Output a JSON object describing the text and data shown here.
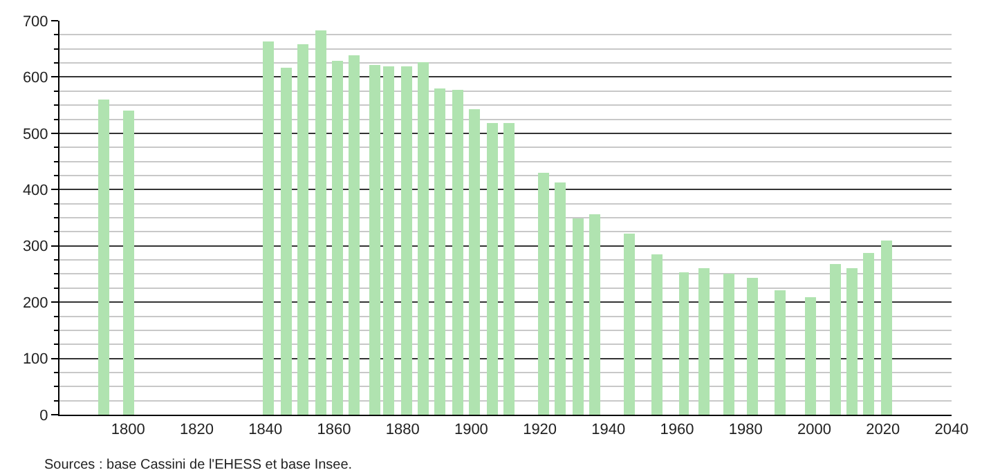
{
  "chart_data": {
    "type": "bar",
    "x": [
      1793,
      1800,
      1841,
      1846,
      1851,
      1856,
      1861,
      1866,
      1872,
      1876,
      1881,
      1886,
      1891,
      1896,
      1901,
      1906,
      1911,
      1921,
      1926,
      1931,
      1936,
      1946,
      1954,
      1962,
      1968,
      1975,
      1982,
      1990,
      1999,
      2006,
      2011,
      2016,
      2021
    ],
    "values": [
      560,
      541,
      664,
      616,
      659,
      683,
      628,
      638,
      621,
      619,
      619,
      626,
      580,
      577,
      543,
      519,
      519,
      430,
      413,
      349,
      355,
      322,
      284,
      253,
      261,
      250,
      242,
      220,
      209,
      267,
      261,
      287,
      309
    ],
    "color": "#b0e3b0",
    "xlim": [
      1780,
      2040
    ],
    "xticks": [
      1800,
      1820,
      1840,
      1860,
      1880,
      1900,
      1920,
      1940,
      1960,
      1980,
      2000,
      2020,
      2040
    ],
    "ylim": [
      0,
      700
    ],
    "yticks": [
      0,
      {
        "value": 25,
        "label": null
      },
      {
        "value": 50,
        "label": null
      },
      {
        "value": 75,
        "label": null
      },
      100,
      {
        "value": 125,
        "label": null
      },
      {
        "value": 150,
        "label": null
      },
      {
        "value": 175,
        "label": null
      },
      200,
      {
        "value": 225,
        "label": null
      },
      {
        "value": 250,
        "label": null
      },
      {
        "value": 275,
        "label": null
      },
      300,
      {
        "value": 325,
        "label": null
      },
      {
        "value": 350,
        "label": null
      },
      {
        "value": 375,
        "label": null
      },
      400,
      {
        "value": 425,
        "label": null
      },
      {
        "value": 450,
        "label": null
      },
      {
        "value": 475,
        "label": null
      },
      500,
      {
        "value": 525,
        "label": null
      },
      {
        "value": 550,
        "label": null
      },
      {
        "value": 575,
        "label": null
      },
      600,
      {
        "value": 625,
        "label": null
      },
      {
        "value": 650,
        "label": null
      },
      {
        "value": 675,
        "label": null
      },
      700
    ],
    "grid": "y",
    "annotations": [
      "Sources : base Cassini de l'EHESS et base Insee."
    ]
  }
}
